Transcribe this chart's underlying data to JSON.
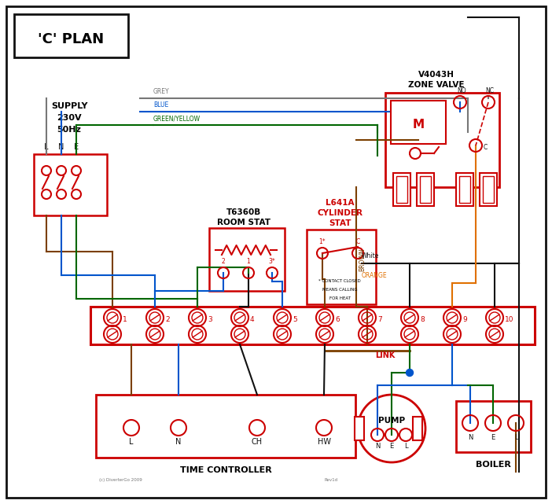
{
  "title": "'C' PLAN",
  "red": "#cc0000",
  "blue": "#0055cc",
  "green": "#006600",
  "grey": "#777777",
  "brown": "#7B3F00",
  "orange": "#E07000",
  "black": "#111111",
  "dark_blue": "#003399",
  "zone_valve_title": [
    "V4043H",
    "ZONE VALVE"
  ],
  "room_stat_title": [
    "T6360B",
    "ROOM STAT"
  ],
  "cyl_stat_title": [
    "L641A",
    "CYLINDER",
    "STAT"
  ],
  "time_ctrl_title": "TIME CONTROLLER",
  "pump_title": "PUMP",
  "boiler_title": "BOILER",
  "link_label": "LINK",
  "supply_lines": [
    "SUPPLY",
    "230V",
    "50Hz"
  ],
  "copyright": "(c) DiverterGo 2009",
  "rev": "Rev1d"
}
